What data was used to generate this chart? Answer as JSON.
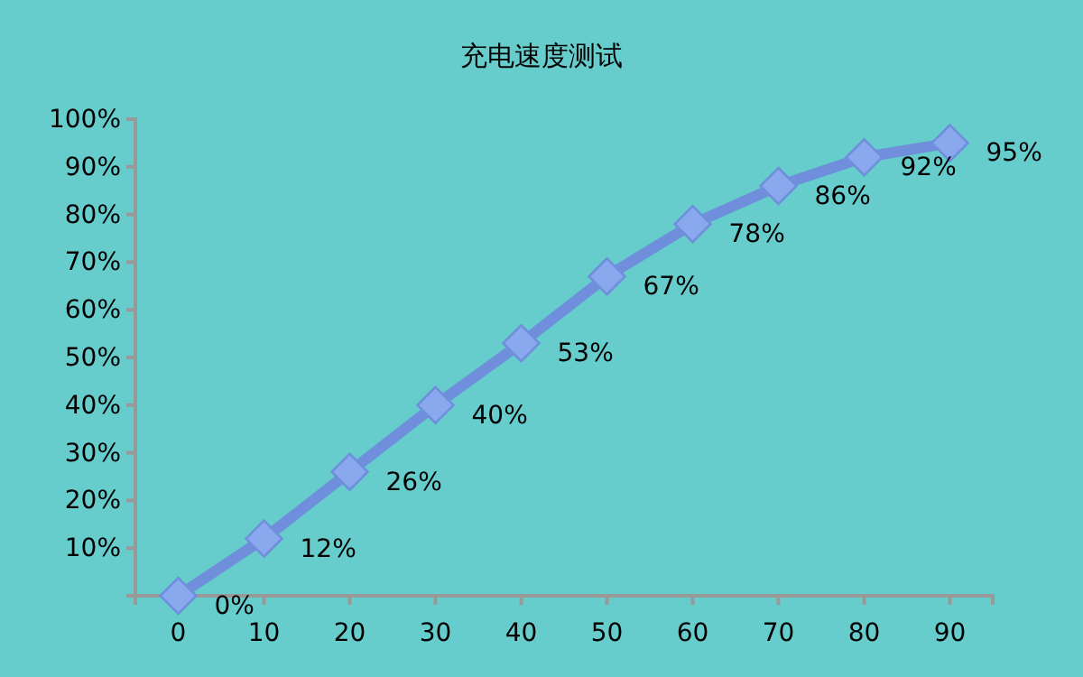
{
  "chart_data": {
    "type": "line",
    "title": "充电速度测试",
    "categories": [
      "0",
      "10",
      "20",
      "30",
      "40",
      "50",
      "60",
      "70",
      "80",
      "90"
    ],
    "series": [
      {
        "color": "#6f8fdc",
        "values": [
          0,
          12,
          26,
          40,
          53,
          67,
          78,
          86,
          92,
          95
        ],
        "value_labels": [
          "0%",
          "12%",
          "26%",
          "40%",
          "53%",
          "67%",
          "78%",
          "86%",
          "92%",
          "95%"
        ]
      }
    ],
    "ylim": [
      0,
      100
    ],
    "yticks": [
      {
        "value": 0,
        "label": null
      },
      {
        "value": 10,
        "label": "10%"
      },
      {
        "value": 20,
        "label": "20%"
      },
      {
        "value": 30,
        "label": "30%"
      },
      {
        "value": 40,
        "label": "40%"
      },
      {
        "value": 50,
        "label": "50%"
      },
      {
        "value": 60,
        "label": "60%"
      },
      {
        "value": 70,
        "label": "70%"
      },
      {
        "value": 80,
        "label": "80%"
      },
      {
        "value": 90,
        "label": "90%"
      },
      {
        "value": 100,
        "label": "100%"
      }
    ],
    "grid": false,
    "marker": "diamond",
    "line_style": "solid"
  }
}
